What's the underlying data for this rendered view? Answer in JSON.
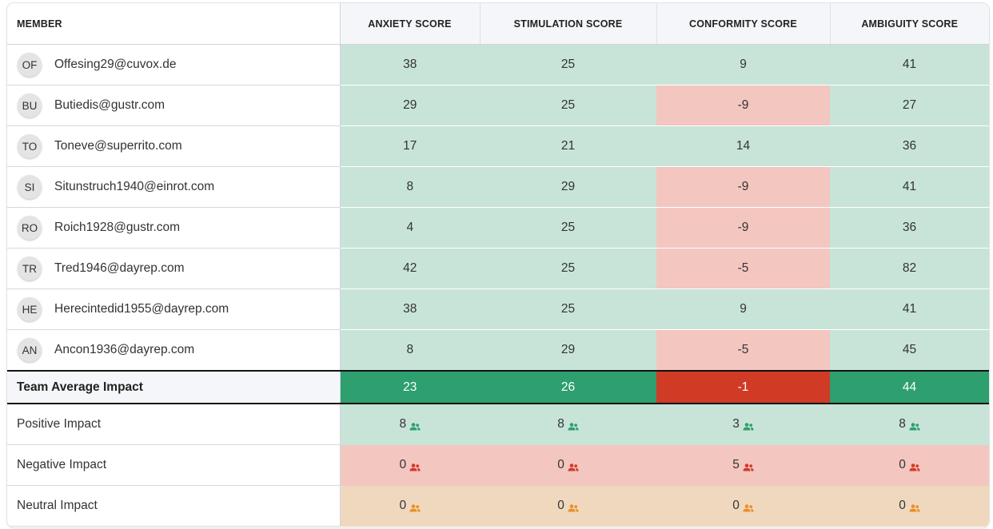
{
  "colors": {
    "positive_light": "#c8e4d8",
    "negative_light": "#f3c6c0",
    "neutral_light": "#f0d8bf",
    "positive_strong": "#2e9f6e",
    "negative_strong": "#cf3b25",
    "icon_positive": "#2e9f6e",
    "icon_negative": "#d33a2a",
    "icon_neutral": "#e8902a"
  },
  "headers": {
    "member": "MEMBER",
    "anxiety": "ANXIETY SCORE",
    "stimulation": "STIMULATION SCORE",
    "conformity": "CONFORMITY SCORE",
    "ambiguity": "AMBIGUITY SCORE"
  },
  "members": [
    {
      "initials": "OF",
      "email": "Offesing29@cuvox.de",
      "scores": [
        "38",
        "25",
        "9",
        "41"
      ]
    },
    {
      "initials": "BU",
      "email": "Butiedis@gustr.com",
      "scores": [
        "29",
        "25",
        "-9",
        "27"
      ]
    },
    {
      "initials": "TO",
      "email": "Toneve@superrito.com",
      "scores": [
        "17",
        "21",
        "14",
        "36"
      ]
    },
    {
      "initials": "SI",
      "email": "Situnstruch1940@einrot.com",
      "scores": [
        "8",
        "29",
        "-9",
        "41"
      ]
    },
    {
      "initials": "RO",
      "email": "Roich1928@gustr.com",
      "scores": [
        "4",
        "25",
        "-9",
        "36"
      ]
    },
    {
      "initials": "TR",
      "email": "Tred1946@dayrep.com",
      "scores": [
        "42",
        "25",
        "-5",
        "82"
      ]
    },
    {
      "initials": "HE",
      "email": "Herecintedid1955@dayrep.com",
      "scores": [
        "38",
        "25",
        "9",
        "41"
      ]
    },
    {
      "initials": "AN",
      "email": "Ancon1936@dayrep.com",
      "scores": [
        "8",
        "29",
        "-5",
        "45"
      ]
    }
  ],
  "average": {
    "label": "Team Average Impact",
    "scores": [
      "23",
      "26",
      "-1",
      "44"
    ]
  },
  "impacts": [
    {
      "label": "Positive Impact",
      "kind": "positive",
      "icon": "people-icon",
      "counts": [
        "8",
        "8",
        "3",
        "8"
      ]
    },
    {
      "label": "Negative Impact",
      "kind": "negative",
      "icon": "people-icon",
      "counts": [
        "0",
        "0",
        "5",
        "0"
      ]
    },
    {
      "label": "Neutral Impact",
      "kind": "neutral",
      "icon": "people-icon",
      "counts": [
        "0",
        "0",
        "0",
        "0"
      ]
    }
  ]
}
